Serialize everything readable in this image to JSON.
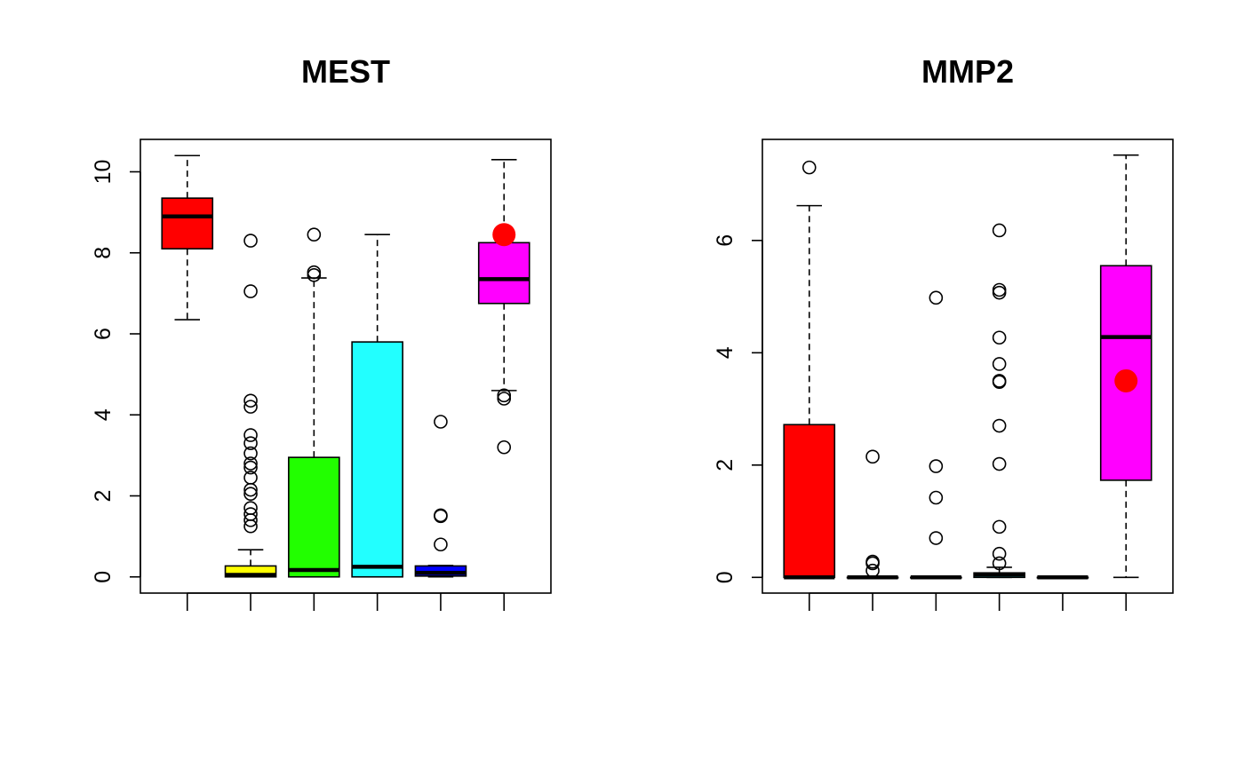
{
  "chart_data": [
    {
      "type": "boxplot",
      "title": "MEST",
      "xlabel": "",
      "ylabel": "",
      "ylim": [
        -0.4,
        10.8
      ],
      "yticks": [
        0,
        2,
        4,
        6,
        8,
        10
      ],
      "tick_labels": [
        "0",
        "2",
        "4",
        "6",
        "8",
        "10"
      ],
      "boxes": [
        {
          "fill": "#ff0000",
          "whisker_low": 6.35,
          "q1": 8.1,
          "median": 8.9,
          "q3": 9.35,
          "whisker_high": 10.4,
          "outliers": []
        },
        {
          "fill": "#ffff00",
          "whisker_low": 0.0,
          "q1": 0.0,
          "median": 0.05,
          "q3": 0.27,
          "whisker_high": 0.67,
          "outliers": [
            1.25,
            1.4,
            1.55,
            1.7,
            2.05,
            2.15,
            2.45,
            2.7,
            2.8,
            3.05,
            3.3,
            3.5,
            4.2,
            4.35,
            7.05,
            8.3
          ]
        },
        {
          "fill": "#22ff00",
          "whisker_low": 0.0,
          "q1": 0.0,
          "median": 0.17,
          "q3": 2.95,
          "whisker_high": 7.38,
          "outliers": [
            7.45,
            7.52,
            8.45
          ]
        },
        {
          "fill": "#22ffff",
          "whisker_low": 0.0,
          "q1": 0.0,
          "median": 0.25,
          "q3": 5.8,
          "whisker_high": 8.45,
          "outliers": []
        },
        {
          "fill": "#0000ff",
          "whisker_low": 0.0,
          "q1": 0.02,
          "median": 0.1,
          "q3": 0.27,
          "whisker_high": 0.28,
          "outliers": [
            0.8,
            1.5,
            1.52,
            3.83
          ]
        },
        {
          "fill": "#ff00ff",
          "whisker_low": 4.6,
          "q1": 6.75,
          "median": 7.35,
          "q3": 8.25,
          "whisker_high": 10.3,
          "outliers": [
            3.2,
            4.4,
            4.48
          ]
        }
      ],
      "highlight": {
        "box_index": 5,
        "value": 8.45,
        "color": "#ff0000"
      }
    },
    {
      "type": "boxplot",
      "title": "MMP2",
      "xlabel": "",
      "ylabel": "",
      "ylim": [
        -0.28,
        7.8
      ],
      "yticks": [
        0,
        2,
        4,
        6
      ],
      "tick_labels": [
        "0",
        "2",
        "4",
        "6"
      ],
      "boxes": [
        {
          "fill": "#ff0000",
          "whisker_low": 0.0,
          "q1": 0.0,
          "median": 0.0,
          "q3": 2.72,
          "whisker_high": 6.62,
          "outliers": [
            7.3
          ]
        },
        {
          "fill": "#ffff00",
          "whisker_low": 0.0,
          "q1": 0.0,
          "median": 0.0,
          "q3": 0.0,
          "whisker_high": 0.0,
          "outliers": [
            0.12,
            0.25,
            0.28,
            2.15
          ]
        },
        {
          "fill": "#22ff00",
          "whisker_low": 0.0,
          "q1": 0.0,
          "median": 0.0,
          "q3": 0.0,
          "whisker_high": 0.0,
          "outliers": [
            0.7,
            1.42,
            1.98,
            4.98
          ]
        },
        {
          "fill": "#22ffff",
          "whisker_low": 0.0,
          "q1": 0.0,
          "median": 0.05,
          "q3": 0.08,
          "whisker_high": 0.18,
          "outliers": [
            0.25,
            0.42,
            0.9,
            2.02,
            2.7,
            3.48,
            3.5,
            3.8,
            4.27,
            5.07,
            5.12,
            6.18
          ]
        },
        {
          "fill": "#0000ff",
          "whisker_low": 0.0,
          "q1": 0.0,
          "median": 0.0,
          "q3": 0.0,
          "whisker_high": 0.0,
          "outliers": []
        },
        {
          "fill": "#ff00ff",
          "whisker_low": 0.0,
          "q1": 1.73,
          "median": 4.28,
          "q3": 5.55,
          "whisker_high": 7.52,
          "outliers": []
        }
      ],
      "highlight": {
        "box_index": 5,
        "value": 3.5,
        "color": "#ff0000"
      }
    }
  ]
}
